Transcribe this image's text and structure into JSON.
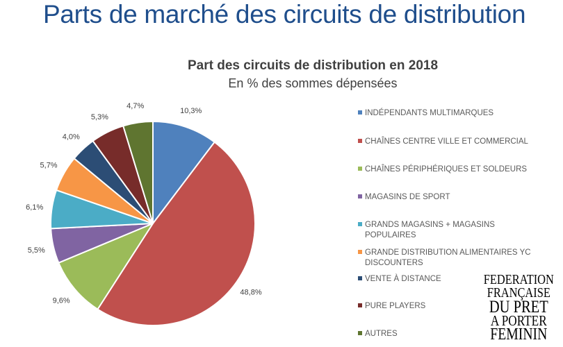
{
  "main_title": "Parts de marché des circuits de distribution",
  "logo_text": [
    "FEDERATION",
    "FRANÇAISE",
    "DU PRET",
    "A PORTER",
    "FEMININ"
  ],
  "chart_data": {
    "type": "pie",
    "title": "Part des circuits de distribution en 2018",
    "subtitle": "En % des sommes dépensées",
    "legend_position": "right",
    "start_angle_deg": 0,
    "direction": "clockwise",
    "slices": [
      {
        "name": "INDÉPENDANTS MULTIMARQUES",
        "value": 10.3,
        "label": "10,3%",
        "color": "#4f81bd"
      },
      {
        "name": "CHAÎNES CENTRE VILLE ET COMMERCIAL",
        "value": 48.8,
        "label": "48,8%",
        "color": "#c0504d"
      },
      {
        "name": "CHAÎNES PÉRIPHÉRIQUES ET SOLDEURS",
        "value": 9.6,
        "label": "9,6%",
        "color": "#9bbb59"
      },
      {
        "name": "MAGASINS DE SPORT",
        "value": 5.5,
        "label": "5,5%",
        "color": "#8064a2"
      },
      {
        "name": "GRANDS MAGASINS + MAGASINS POPULAIRES",
        "value": 6.1,
        "label": "6,1%",
        "color": "#4bacc6"
      },
      {
        "name": "GRANDE DISTRIBUTION ALIMENTAIRES YC DISCOUNTERS",
        "value": 5.7,
        "label": "5,7%",
        "color": "#f79646"
      },
      {
        "name": "VENTE À DISTANCE",
        "value": 4.0,
        "label": "4,0%",
        "color": "#2c4d75"
      },
      {
        "name": "PURE PLAYERS",
        "value": 5.3,
        "label": "5,3%",
        "color": "#772c2a"
      },
      {
        "name": "AUTRES",
        "value": 4.7,
        "label": "4,7%",
        "color": "#5f7530"
      }
    ]
  }
}
